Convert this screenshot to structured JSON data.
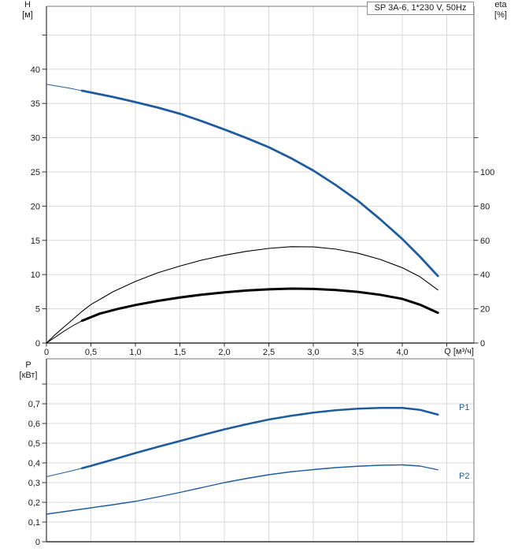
{
  "colors": {
    "curve_blue": "#1e5c9e",
    "curve_black": "#000000",
    "grid": "#d9d9d9",
    "frame": "#7a7a7a",
    "axis": "#333333",
    "text": "#1a1a1a",
    "title_border": "#8f8f8f"
  },
  "labels": {
    "title_box": "SP 3A-6, 1*230 V, 50Hz",
    "left_axis_top": {
      "line1": "H",
      "line2": "[м]"
    },
    "right_axis_top": {
      "line1": "eta",
      "line2": "[%]"
    },
    "bottom_left_axis": {
      "line1": "P",
      "line2": "[кВт]"
    },
    "x_axis": "Q [м³/ч]"
  },
  "chart_data": [
    {
      "id": "head-efficiency-chart",
      "type": "line",
      "title": "SP 3A-6, 1*230 V, 50Hz",
      "xlabel": "Q [м³/ч]",
      "ylabel_left": "H [м]",
      "ylabel_right": "eta [%]",
      "x_range_shown": [
        0,
        4.8
      ],
      "y_left_range_shown": [
        0,
        49.2
      ],
      "y_right_per_left_unit": 4,
      "grid": true,
      "x_grid": [
        0.5,
        1,
        1.5,
        2,
        2.5,
        3,
        3.5,
        4,
        4.5
      ],
      "y_left_grid": [
        5,
        10,
        15,
        20,
        25,
        30,
        35,
        40,
        45
      ],
      "y_right_tick_marks": [
        0,
        20,
        40,
        60,
        80,
        100,
        120
      ],
      "x_ticks": [
        {
          "v": 0,
          "label": "0"
        },
        {
          "v": 0.5,
          "label": "0,5"
        },
        {
          "v": 1,
          "label": "1,0"
        },
        {
          "v": 1.5,
          "label": "1,5"
        },
        {
          "v": 2,
          "label": "2,0"
        },
        {
          "v": 2.5,
          "label": "2,5"
        },
        {
          "v": 3,
          "label": "3,0"
        },
        {
          "v": 3.5,
          "label": "3,5"
        },
        {
          "v": 4,
          "label": "4,0"
        }
      ],
      "y_left_ticks": [
        {
          "v": 0,
          "label": "0"
        },
        {
          "v": 5,
          "label": "5"
        },
        {
          "v": 10,
          "label": "10"
        },
        {
          "v": 15,
          "label": "15"
        },
        {
          "v": 20,
          "label": "20"
        },
        {
          "v": 25,
          "label": "25"
        },
        {
          "v": 30,
          "label": "30"
        },
        {
          "v": 35,
          "label": "35"
        },
        {
          "v": 40,
          "label": "40"
        }
      ],
      "y_right_ticks": [
        {
          "v": 0,
          "label": "0"
        },
        {
          "v": 20,
          "label": "20"
        },
        {
          "v": 40,
          "label": "40"
        },
        {
          "v": 60,
          "label": "60"
        },
        {
          "v": 80,
          "label": "80"
        },
        {
          "v": 100,
          "label": "100"
        }
      ],
      "series": [
        {
          "name": "H (blue head curve)",
          "axis": "left",
          "color_key": "curve_blue",
          "width": 2.8,
          "thin_until": 0.4,
          "thin_width": 1,
          "points": [
            [
              0,
              37.8
            ],
            [
              0.25,
              37.25
            ],
            [
              0.4,
              36.86
            ],
            [
              0.5,
              36.6
            ],
            [
              0.75,
              35.95
            ],
            [
              1,
              35.2
            ],
            [
              1.25,
              34.4
            ],
            [
              1.5,
              33.5
            ],
            [
              1.75,
              32.4
            ],
            [
              2,
              31.2
            ],
            [
              2.25,
              29.95
            ],
            [
              2.5,
              28.6
            ],
            [
              2.75,
              27.0
            ],
            [
              3,
              25.2
            ],
            [
              3.25,
              23.1
            ],
            [
              3.5,
              20.8
            ],
            [
              3.75,
              18.1
            ],
            [
              4,
              15.2
            ],
            [
              4.2,
              12.6
            ],
            [
              4.4,
              9.8
            ]
          ]
        },
        {
          "name": "eta curve (thin black)",
          "axis": "right",
          "color_key": "curve_black",
          "width": 1.1,
          "points": [
            [
              0,
              0
            ],
            [
              0.1,
              5
            ],
            [
              0.2,
              9.5
            ],
            [
              0.3,
              14
            ],
            [
              0.4,
              18.5
            ],
            [
              0.5,
              22.5
            ],
            [
              0.75,
              30
            ],
            [
              1,
              36
            ],
            [
              1.25,
              41
            ],
            [
              1.5,
              45
            ],
            [
              1.75,
              48.5
            ],
            [
              2,
              51.3
            ],
            [
              2.25,
              53.6
            ],
            [
              2.5,
              55.3
            ],
            [
              2.75,
              56.3
            ],
            [
              3,
              56.2
            ],
            [
              3.25,
              54.9
            ],
            [
              3.5,
              52.5
            ],
            [
              3.75,
              48.9
            ],
            [
              4,
              44
            ],
            [
              4.2,
              38.7
            ],
            [
              4.4,
              31
            ]
          ]
        },
        {
          "name": "eta curve (thick black)",
          "axis": "right",
          "color_key": "curve_black",
          "width": 3,
          "thin_until": 0.4,
          "thin_width": 1,
          "points": [
            [
              0,
              0
            ],
            [
              0.1,
              3.5
            ],
            [
              0.2,
              7
            ],
            [
              0.3,
              10.2
            ],
            [
              0.4,
              13
            ],
            [
              0.6,
              17.2
            ],
            [
              0.8,
              19.9
            ],
            [
              1,
              22.2
            ],
            [
              1.25,
              24.6
            ],
            [
              1.5,
              26.6
            ],
            [
              1.75,
              28.3
            ],
            [
              2,
              29.6
            ],
            [
              2.25,
              30.7
            ],
            [
              2.5,
              31.4
            ],
            [
              2.75,
              31.8
            ],
            [
              3,
              31.6
            ],
            [
              3.25,
              31
            ],
            [
              3.5,
              29.9
            ],
            [
              3.75,
              28.2
            ],
            [
              4,
              25.8
            ],
            [
              4.2,
              22.4
            ],
            [
              4.4,
              17.7
            ]
          ]
        }
      ]
    },
    {
      "id": "power-chart",
      "type": "line",
      "ylabel_left": "P [кВт]",
      "x_range_shown": [
        0,
        4.8
      ],
      "y_range_shown": [
        0,
        0.928
      ],
      "grid": true,
      "x_grid": [
        0.5,
        1,
        1.5,
        2,
        2.5,
        3,
        3.5,
        4,
        4.5
      ],
      "y_grid": [
        0.1,
        0.2,
        0.3,
        0.4,
        0.5,
        0.6,
        0.7,
        0.8
      ],
      "y_ticks": [
        {
          "v": 0,
          "label": "0"
        },
        {
          "v": 0.1,
          "label": "0,1"
        },
        {
          "v": 0.2,
          "label": "0,2"
        },
        {
          "v": 0.3,
          "label": "0,3"
        },
        {
          "v": 0.4,
          "label": "0,4"
        },
        {
          "v": 0.5,
          "label": "0,5"
        },
        {
          "v": 0.6,
          "label": "0,6"
        },
        {
          "v": 0.7,
          "label": "0,7"
        }
      ],
      "series": [
        {
          "name": "P1",
          "color_key": "curve_blue",
          "width": 2.6,
          "thin_until": 0.4,
          "thin_width": 1,
          "points": [
            [
              0,
              0.33
            ],
            [
              0.25,
              0.356
            ],
            [
              0.4,
              0.373
            ],
            [
              0.5,
              0.385
            ],
            [
              0.75,
              0.417
            ],
            [
              1,
              0.45
            ],
            [
              1.25,
              0.481
            ],
            [
              1.5,
              0.511
            ],
            [
              1.75,
              0.541
            ],
            [
              2,
              0.57
            ],
            [
              2.25,
              0.596
            ],
            [
              2.5,
              0.62
            ],
            [
              2.75,
              0.639
            ],
            [
              3,
              0.655
            ],
            [
              3.25,
              0.667
            ],
            [
              3.5,
              0.675
            ],
            [
              3.75,
              0.679
            ],
            [
              4,
              0.679
            ],
            [
              4.2,
              0.669
            ],
            [
              4.4,
              0.645
            ]
          ]
        },
        {
          "name": "P2",
          "color_key": "curve_blue",
          "width": 1.4,
          "points": [
            [
              0,
              0.14
            ],
            [
              0.25,
              0.156
            ],
            [
              0.5,
              0.172
            ],
            [
              0.75,
              0.188
            ],
            [
              1,
              0.205
            ],
            [
              1.25,
              0.227
            ],
            [
              1.5,
              0.25
            ],
            [
              1.75,
              0.275
            ],
            [
              2,
              0.3
            ],
            [
              2.25,
              0.321
            ],
            [
              2.5,
              0.34
            ],
            [
              2.75,
              0.355
            ],
            [
              3,
              0.366
            ],
            [
              3.25,
              0.376
            ],
            [
              3.5,
              0.383
            ],
            [
              3.75,
              0.388
            ],
            [
              4,
              0.39
            ],
            [
              4.2,
              0.384
            ],
            [
              4.4,
              0.365
            ]
          ]
        }
      ]
    }
  ]
}
